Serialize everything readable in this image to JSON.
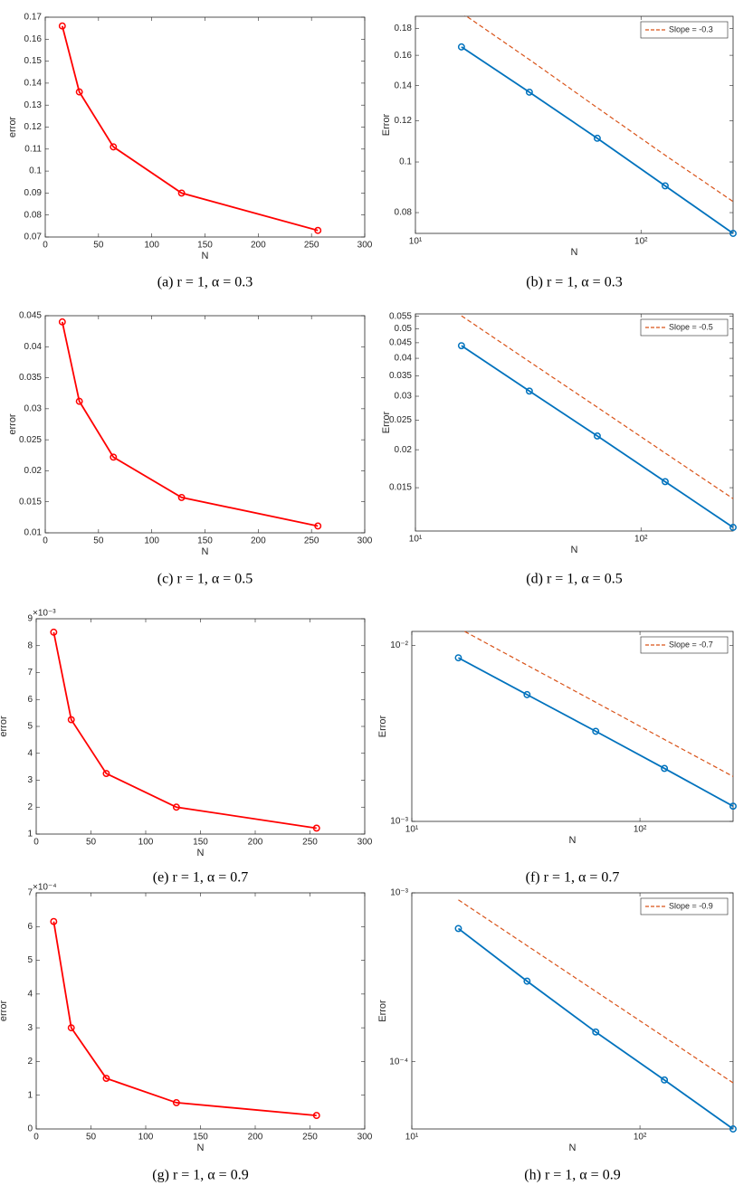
{
  "chart_data": [
    {
      "type": "line",
      "caption": "(a)  r = 1, α = 0.3",
      "xlabel": "N",
      "ylabel": "error",
      "x": [
        16,
        32,
        64,
        128,
        256
      ],
      "xlim": [
        0,
        300
      ],
      "xticks": [
        0,
        50,
        100,
        150,
        200,
        250,
        300
      ],
      "ylim": [
        0.07,
        0.17
      ],
      "yticks": [
        0.07,
        0.08,
        0.09,
        0.1,
        0.11,
        0.12,
        0.13,
        0.14,
        0.15,
        0.16,
        0.17
      ],
      "series": [
        {
          "color": "#ff0000",
          "marker": "circle",
          "values": [
            0.166,
            0.136,
            0.111,
            0.09,
            0.073
          ]
        }
      ]
    },
    {
      "type": "line",
      "caption": "(b)  r = 1, α = 0.3",
      "xlabel": "N",
      "ylabel": "Error",
      "xscale": "log",
      "yscale": "log",
      "legend": "top-right",
      "x": [
        16,
        32,
        64,
        128,
        256
      ],
      "xlim": [
        10,
        256
      ],
      "xticks": [
        {
          "value": 10,
          "label": "10¹"
        },
        {
          "value": 100,
          "label": "10²"
        }
      ],
      "ylim": [
        0.073,
        0.19
      ],
      "yticks": [
        0.08,
        0.1,
        0.12,
        0.14,
        0.16,
        0.18
      ],
      "series": [
        {
          "color": "#0072bd",
          "marker": "circle",
          "values": [
            0.166,
            0.136,
            0.111,
            0.09,
            0.073
          ]
        },
        {
          "name": "Slope = -0.3",
          "color": "#d95319",
          "linestyle": "dashed",
          "values": [
            0.193,
            0.157,
            0.127,
            0.103,
            0.084
          ]
        }
      ]
    },
    {
      "type": "line",
      "caption": "(c)  r = 1, α = 0.5",
      "xlabel": "N",
      "ylabel": "error",
      "x": [
        16,
        32,
        64,
        128,
        256
      ],
      "xlim": [
        0,
        300
      ],
      "xticks": [
        0,
        50,
        100,
        150,
        200,
        250,
        300
      ],
      "ylim": [
        0.01,
        0.045
      ],
      "yticks": [
        0.01,
        0.015,
        0.02,
        0.025,
        0.03,
        0.035,
        0.04,
        0.045
      ],
      "series": [
        {
          "color": "#ff0000",
          "marker": "circle",
          "values": [
            0.044,
            0.0312,
            0.0222,
            0.0157,
            0.0111
          ]
        }
      ]
    },
    {
      "type": "line",
      "caption": "(d)  r = 1, α = 0.5",
      "xlabel": "N",
      "ylabel": "Error",
      "xscale": "log",
      "yscale": "log",
      "legend": "top-right",
      "x": [
        16,
        32,
        64,
        128,
        256
      ],
      "xlim": [
        10,
        256
      ],
      "xticks": [
        {
          "value": 10,
          "label": "10¹"
        },
        {
          "value": 100,
          "label": "10²"
        }
      ],
      "ylim": [
        0.0108,
        0.056
      ],
      "yticks": [
        0.015,
        0.02,
        0.025,
        0.03,
        0.035,
        0.04,
        0.045,
        0.05,
        0.055
      ],
      "series": [
        {
          "color": "#0072bd",
          "marker": "circle",
          "values": [
            0.044,
            0.0312,
            0.0222,
            0.0157,
            0.0111
          ]
        },
        {
          "name": "Slope = -0.5",
          "color": "#d95319",
          "linestyle": "dashed",
          "values": [
            0.0552,
            0.039,
            0.0276,
            0.0195,
            0.0138
          ]
        }
      ]
    },
    {
      "type": "line",
      "caption": "(e)  r = 1, α = 0.7",
      "xlabel": "N",
      "ylabel": "error",
      "y_exponent_label": "×10⁻³",
      "x": [
        16,
        32,
        64,
        128,
        256
      ],
      "xlim": [
        0,
        300
      ],
      "xticks": [
        0,
        50,
        100,
        150,
        200,
        250,
        300
      ],
      "ylim": [
        0.001,
        0.009
      ],
      "yticks": [
        {
          "value": 0.001,
          "label": "1"
        },
        {
          "value": 0.002,
          "label": "2"
        },
        {
          "value": 0.003,
          "label": "3"
        },
        {
          "value": 0.004,
          "label": "4"
        },
        {
          "value": 0.005,
          "label": "5"
        },
        {
          "value": 0.006,
          "label": "6"
        },
        {
          "value": 0.007,
          "label": "7"
        },
        {
          "value": 0.008,
          "label": "8"
        },
        {
          "value": 0.009,
          "label": "9"
        }
      ],
      "series": [
        {
          "color": "#ff0000",
          "marker": "circle",
          "values": [
            0.0085,
            0.00525,
            0.00325,
            0.002,
            0.00122
          ]
        }
      ]
    },
    {
      "type": "line",
      "caption": "(f)  r = 1, α = 0.7",
      "xlabel": "N",
      "ylabel": "Error",
      "xscale": "log",
      "yscale": "log",
      "legend": "top-right",
      "x": [
        16,
        32,
        64,
        128,
        256
      ],
      "xlim": [
        10,
        256
      ],
      "xticks": [
        {
          "value": 10,
          "label": "10¹"
        },
        {
          "value": 100,
          "label": "10²"
        }
      ],
      "ylim": [
        0.001,
        0.012
      ],
      "yticks": [
        {
          "value": 0.001,
          "label": "10⁻³"
        },
        {
          "value": 0.01,
          "label": "10⁻²"
        }
      ],
      "series": [
        {
          "color": "#0072bd",
          "marker": "circle",
          "values": [
            0.0085,
            0.00525,
            0.00325,
            0.002,
            0.00122
          ]
        },
        {
          "name": "Slope = -0.7",
          "color": "#d95319",
          "linestyle": "dashed",
          "values": [
            0.01254,
            0.00772,
            0.00475,
            0.00292,
            0.0018
          ]
        }
      ]
    },
    {
      "type": "line",
      "caption": "(g)  r = 1, α = 0.9",
      "xlabel": "N",
      "ylabel": "error",
      "y_exponent_label": "×10⁻⁴",
      "x": [
        16,
        32,
        64,
        128,
        256
      ],
      "xlim": [
        0,
        300
      ],
      "xticks": [
        0,
        50,
        100,
        150,
        200,
        250,
        300
      ],
      "ylim": [
        0,
        0.0007
      ],
      "yticks": [
        0,
        {
          "value": 0.0001,
          "label": "1"
        },
        {
          "value": 0.0002,
          "label": "2"
        },
        {
          "value": 0.0003,
          "label": "3"
        },
        {
          "value": 0.0004,
          "label": "4"
        },
        {
          "value": 0.0005,
          "label": "5"
        },
        {
          "value": 0.0006,
          "label": "6"
        },
        {
          "value": 0.0007,
          "label": "7"
        }
      ],
      "series": [
        {
          "color": "#ff0000",
          "marker": "circle",
          "values": [
            0.000615,
            0.0003,
            0.00015,
            7.8e-05,
            4e-05
          ]
        }
      ]
    },
    {
      "type": "line",
      "caption": "(h)  r = 1, α = 0.9",
      "xlabel": "N",
      "ylabel": "Error",
      "xscale": "log",
      "yscale": "log",
      "legend": "top-right",
      "x": [
        16,
        32,
        64,
        128,
        256
      ],
      "xlim": [
        10,
        256
      ],
      "xticks": [
        {
          "value": 10,
          "label": "10¹"
        },
        {
          "value": 100,
          "label": "10²"
        }
      ],
      "ylim": [
        4e-05,
        0.001
      ],
      "yticks": [
        {
          "value": 0.0001,
          "label": "10⁻⁴"
        },
        {
          "value": 0.001,
          "label": "10⁻³"
        }
      ],
      "series": [
        {
          "color": "#0072bd",
          "marker": "circle",
          "values": [
            0.000615,
            0.0003,
            0.00015,
            7.8e-05,
            4e-05
          ]
        },
        {
          "name": "Slope = -0.9",
          "color": "#d95319",
          "linestyle": "dashed",
          "values": [
            0.000909,
            0.000487,
            0.000261,
            0.00014,
            7.5e-05
          ]
        }
      ]
    }
  ]
}
